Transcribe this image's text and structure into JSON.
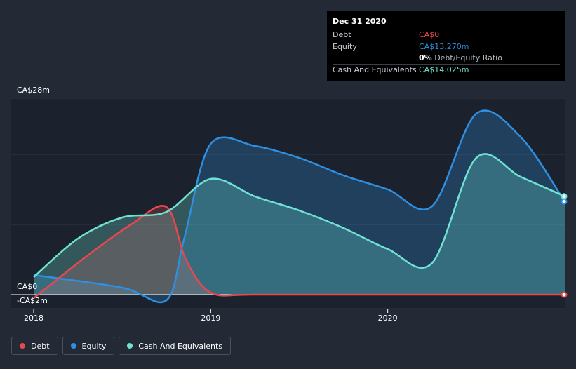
{
  "chart_data": {
    "type": "area",
    "title": "",
    "xlabel": "",
    "ylabel": "",
    "ylim": [
      -2,
      28
    ],
    "y_tick_labels": [
      "CA$28m",
      "CA$0",
      "-CA$2m"
    ],
    "x_tick_labels": [
      "2018",
      "2019",
      "2020"
    ],
    "x_ticks": [
      2018,
      2019,
      2020
    ],
    "xlim": [
      2018,
      2021
    ],
    "grid": true,
    "series": [
      {
        "name": "Debt",
        "color": "#e9474f",
        "points": [
          [
            2018.0,
            -0.5
          ],
          [
            2018.3,
            5.5
          ],
          [
            2018.55,
            10.0
          ],
          [
            2018.75,
            12.5
          ],
          [
            2018.86,
            5.0
          ],
          [
            2019.0,
            0.3
          ],
          [
            2019.25,
            0.0
          ],
          [
            2020.0,
            0.0
          ],
          [
            2021.0,
            0.0
          ]
        ]
      },
      {
        "name": "Equity",
        "color": "#2f8fe0",
        "points": [
          [
            2018.0,
            2.8
          ],
          [
            2018.5,
            1.0
          ],
          [
            2018.75,
            -0.8
          ],
          [
            2018.85,
            8.0
          ],
          [
            2019.0,
            21.5
          ],
          [
            2019.25,
            21.2
          ],
          [
            2019.5,
            19.5
          ],
          [
            2019.75,
            17.0
          ],
          [
            2020.0,
            15.0
          ],
          [
            2020.25,
            12.6
          ],
          [
            2020.5,
            25.8
          ],
          [
            2020.75,
            22.5
          ],
          [
            2021.0,
            13.27
          ]
        ]
      },
      {
        "name": "Cash And Equivalents",
        "color": "#6fe3d3",
        "points": [
          [
            2018.0,
            2.5
          ],
          [
            2018.25,
            8.0
          ],
          [
            2018.5,
            11.0
          ],
          [
            2018.75,
            11.8
          ],
          [
            2019.0,
            16.5
          ],
          [
            2019.25,
            14.0
          ],
          [
            2019.5,
            12.0
          ],
          [
            2019.75,
            9.5
          ],
          [
            2020.0,
            6.5
          ],
          [
            2020.25,
            4.5
          ],
          [
            2020.5,
            19.5
          ],
          [
            2020.75,
            16.8
          ],
          [
            2021.0,
            14.025
          ]
        ]
      }
    ]
  },
  "tooltip": {
    "date": "Dec 31 2020",
    "debt_label": "Debt",
    "debt_value": "CA$0",
    "equity_label": "Equity",
    "equity_value": "CA$13.270m",
    "ratio_value": "0%",
    "ratio_label": "Debt/Equity Ratio",
    "cash_label": "Cash And Equivalents",
    "cash_value": "CA$14.025m",
    "colors": {
      "debt": "#e9474f",
      "equity": "#2f8fe0",
      "cash": "#6fe3d3"
    }
  },
  "legend": [
    {
      "label": "Debt",
      "color": "#e9474f"
    },
    {
      "label": "Equity",
      "color": "#2f8fe0"
    },
    {
      "label": "Cash And Equivalents",
      "color": "#6fe3d3"
    }
  ]
}
